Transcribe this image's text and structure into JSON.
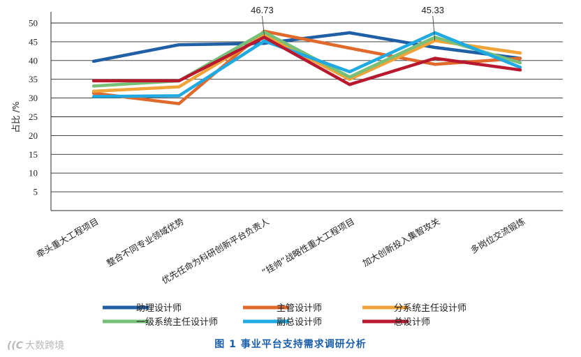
{
  "chart_data": {
    "type": "line",
    "title": "",
    "xlabel": "",
    "ylabel": "占比 /%",
    "ylim": [
      0,
      50
    ],
    "yticks": [
      5,
      10,
      15,
      20,
      25,
      30,
      35,
      40,
      45,
      50
    ],
    "grid": true,
    "legend_position": "bottom",
    "categories": [
      "牵头重大工程项目",
      "整合不同专业领域优势",
      "优先任命为科研创新平台负责人",
      "“挂帅”战略性重大工程项目",
      "加大创新投入集智攻关",
      "多岗位交流锻炼"
    ],
    "series": [
      {
        "name": "助理设计师",
        "color": "#1f5fa6",
        "values": [
          39.8,
          44.2,
          44.6,
          47.4,
          43.5,
          40.6
        ]
      },
      {
        "name": "主管设计师",
        "color": "#e06a2c",
        "values": [
          31.3,
          28.5,
          47.8,
          43.3,
          39.0,
          40.6
        ]
      },
      {
        "name": "分系统主任设计师",
        "color": "#f0a338",
        "values": [
          31.8,
          33.0,
          46.7,
          35.0,
          45.3,
          42.0
        ]
      },
      {
        "name": "一级系统主任设计师",
        "color": "#78bf78",
        "values": [
          33.2,
          34.6,
          47.6,
          35.6,
          46.2,
          39.4
        ]
      },
      {
        "name": "副总设计师",
        "color": "#21a9e1",
        "values": [
          30.4,
          30.6,
          45.2,
          37.0,
          47.4,
          38.2
        ]
      },
      {
        "name": "总设计师",
        "color": "#b8192e",
        "values": [
          34.6,
          34.6,
          46.2,
          33.6,
          40.6,
          37.5
        ]
      }
    ],
    "annotations": [
      {
        "text": "46.73",
        "category_index": 2,
        "series": "分系统主任设计师",
        "value": 46.73
      },
      {
        "text": "45.33",
        "category_index": 4,
        "series": "分系统主任设计师",
        "value": 45.33
      }
    ]
  },
  "figure": {
    "caption": "图 1   事业平台支持需求调研分析",
    "watermark": "大数跨境",
    "watermark_mark": "((C"
  }
}
